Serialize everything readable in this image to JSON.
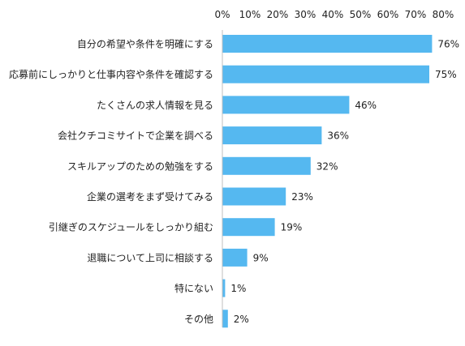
{
  "chart_data": {
    "type": "bar",
    "orientation": "horizontal",
    "categories": [
      "自分の希望や条件を明確にする",
      "応募前にしっかりと仕事内容や条件を確認する",
      "たくさんの求人情報を見る",
      "会社クチコミサイトで企業を調べる",
      "スキルアップのための勉強をする",
      "企業の選考をまず受けてみる",
      "引継ぎのスケジュールをしっかり組む",
      "退職について上司に相談する",
      "特にない",
      "その他"
    ],
    "values": [
      76,
      75,
      46,
      36,
      32,
      23,
      19,
      9,
      1,
      2
    ],
    "value_labels": [
      "76%",
      "75%",
      "46%",
      "36%",
      "32%",
      "23%",
      "19%",
      "9%",
      "1%",
      "2%"
    ],
    "xlim": [
      0,
      80
    ],
    "tick_values": [
      0,
      10,
      20,
      30,
      40,
      50,
      60,
      70,
      80
    ],
    "tick_labels": [
      "0%",
      "10%",
      "20%",
      "30%",
      "40%",
      "50%",
      "60%",
      "70%",
      "80%"
    ],
    "axis_position": "top",
    "grid": false,
    "legend": "none",
    "bar_color": "#55b8f0",
    "axis_color": "#bfbfbf"
  }
}
